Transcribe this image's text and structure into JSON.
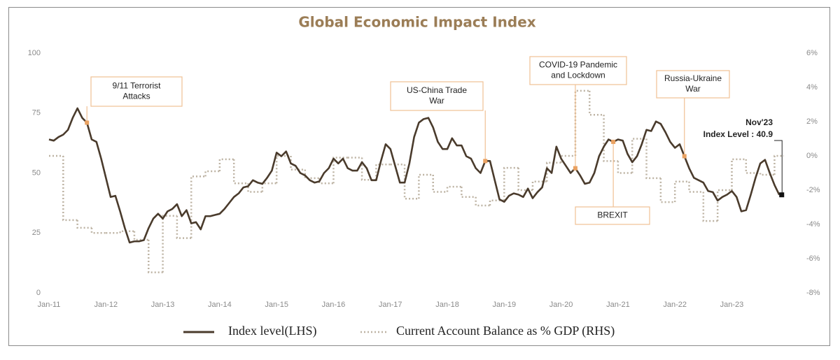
{
  "chart_data": {
    "type": "line",
    "title": "Global Economic Impact Index",
    "x": [
      "2011-01",
      "2011-02",
      "2011-03",
      "2011-04",
      "2011-05",
      "2011-06",
      "2011-07",
      "2011-08",
      "2011-09",
      "2011-10",
      "2011-11",
      "2011-12",
      "2012-01",
      "2012-02",
      "2012-03",
      "2012-04",
      "2012-05",
      "2012-06",
      "2012-07",
      "2012-08",
      "2012-09",
      "2012-10",
      "2012-11",
      "2012-12",
      "2013-01",
      "2013-02",
      "2013-03",
      "2013-04",
      "2013-05",
      "2013-06",
      "2013-07",
      "2013-08",
      "2013-09",
      "2013-10",
      "2013-11",
      "2013-12",
      "2014-01",
      "2014-02",
      "2014-03",
      "2014-04",
      "2014-05",
      "2014-06",
      "2014-07",
      "2014-08",
      "2014-09",
      "2014-10",
      "2014-11",
      "2014-12",
      "2015-01",
      "2015-02",
      "2015-03",
      "2015-04",
      "2015-05",
      "2015-06",
      "2015-07",
      "2015-08",
      "2015-09",
      "2015-10",
      "2015-11",
      "2015-12",
      "2016-01",
      "2016-02",
      "2016-03",
      "2016-04",
      "2016-05",
      "2016-06",
      "2016-07",
      "2016-08",
      "2016-09",
      "2016-10",
      "2016-11",
      "2016-12",
      "2017-01",
      "2017-02",
      "2017-03",
      "2017-04",
      "2017-05",
      "2017-06",
      "2017-07",
      "2017-08",
      "2017-09",
      "2017-10",
      "2017-11",
      "2017-12",
      "2018-01",
      "2018-02",
      "2018-03",
      "2018-04",
      "2018-05",
      "2018-06",
      "2018-07",
      "2018-08",
      "2018-09",
      "2018-10",
      "2018-11",
      "2018-12",
      "2019-01",
      "2019-02",
      "2019-03",
      "2019-04",
      "2019-05",
      "2019-06",
      "2019-07",
      "2019-08",
      "2019-09",
      "2019-10",
      "2019-11",
      "2019-12",
      "2020-01",
      "2020-02",
      "2020-03",
      "2020-04",
      "2020-05",
      "2020-06",
      "2020-07",
      "2020-08",
      "2020-09",
      "2020-10",
      "2020-11",
      "2020-12",
      "2021-01",
      "2021-02",
      "2021-03",
      "2021-04",
      "2021-05",
      "2021-06",
      "2021-07",
      "2021-08",
      "2021-09",
      "2021-10",
      "2021-11",
      "2021-12",
      "2022-01",
      "2022-02",
      "2022-03",
      "2022-04",
      "2022-05",
      "2022-06",
      "2022-07",
      "2022-08",
      "2022-09",
      "2022-10",
      "2022-11",
      "2022-12",
      "2023-01",
      "2023-02",
      "2023-03",
      "2023-04",
      "2023-05",
      "2023-06",
      "2023-07",
      "2023-08",
      "2023-09",
      "2023-10",
      "2023-11"
    ],
    "series": [
      {
        "name": "Index level(LHS)",
        "color": "#4a3b2c",
        "style": "solid",
        "values": [
          64,
          63.5,
          65,
          66,
          68,
          73,
          77,
          73,
          71,
          64,
          63,
          56,
          48,
          40,
          40.5,
          34,
          27,
          21,
          21.5,
          21.5,
          22,
          27,
          31,
          33,
          31,
          34,
          35,
          37,
          32,
          34.5,
          29,
          29.5,
          26.5,
          32,
          32,
          32.5,
          33,
          35,
          37.5,
          40,
          41.5,
          44,
          44.5,
          47,
          46,
          45.5,
          48,
          51,
          58.5,
          57,
          59,
          54,
          53,
          50,
          49,
          47,
          46,
          46.5,
          50,
          52,
          56,
          54,
          56,
          52,
          51,
          51,
          54.5,
          52,
          47,
          47,
          55,
          62,
          60,
          53,
          46,
          46,
          54,
          65,
          71,
          72.5,
          73,
          69,
          63,
          60,
          60,
          64.5,
          61.5,
          61.5,
          57,
          56,
          52,
          50,
          55,
          55,
          47,
          39,
          38,
          40.5,
          41.5,
          41,
          40,
          43.5,
          39.5,
          42,
          44,
          52,
          50,
          61,
          56,
          53,
          50,
          52,
          49,
          45.5,
          46,
          50,
          57,
          61,
          64,
          63,
          64,
          63.5,
          58,
          54.5,
          57,
          62,
          68,
          67.5,
          71.5,
          70.5,
          67,
          63,
          60.5,
          62,
          57,
          52,
          48,
          47,
          46,
          42.5,
          42,
          38.5,
          40,
          41,
          42.5,
          40,
          34,
          34.5,
          41,
          48,
          54,
          55.5,
          50,
          45,
          40.9
        ]
      },
      {
        "name": "Current Account Balance as % GDP (RHS)",
        "color": "#bdb3a3",
        "style": "dotted",
        "axis": "y2",
        "step": true,
        "x": [
          "2011-01",
          "2011-04",
          "2011-07",
          "2011-10",
          "2012-01",
          "2012-04",
          "2012-07",
          "2012-10",
          "2013-01",
          "2013-04",
          "2013-07",
          "2013-10",
          "2014-01",
          "2014-04",
          "2014-07",
          "2014-10",
          "2015-01",
          "2015-04",
          "2015-07",
          "2015-10",
          "2016-01",
          "2016-04",
          "2016-07",
          "2016-10",
          "2017-01",
          "2017-04",
          "2017-07",
          "2017-10",
          "2018-01",
          "2018-04",
          "2018-07",
          "2018-10",
          "2019-01",
          "2019-04",
          "2019-07",
          "2019-10",
          "2020-01",
          "2020-04",
          "2020-07",
          "2020-10",
          "2021-01",
          "2021-04",
          "2021-07",
          "2021-10",
          "2022-01",
          "2022-04",
          "2022-07",
          "2022-10",
          "2023-01",
          "2023-04",
          "2023-07",
          "2023-10"
        ],
        "values": [
          0,
          -3.75,
          -4.2,
          -4.5,
          -4.5,
          -4.4,
          -4.9,
          -6.8,
          -3.5,
          -4.8,
          -1.2,
          -0.9,
          -0.2,
          -1.6,
          -2.1,
          -1.6,
          0,
          -0.8,
          -1.3,
          -1.6,
          -0.1,
          -0.1,
          -1.4,
          -0.5,
          -0.5,
          -2.5,
          -1.1,
          -2.1,
          -1.8,
          -2.4,
          -2.9,
          -2.6,
          -0.7,
          -2,
          -1.5,
          -0.4,
          0,
          3.8,
          2.4,
          -0.3,
          -1,
          1,
          -1.3,
          -2.7,
          -1.5,
          -2.1,
          -3.8,
          -2,
          -0.2,
          -1,
          -1.1,
          0
        ]
      }
    ],
    "xlim": [
      "2011-01",
      "2023-12"
    ],
    "xticks": [
      {
        "value": "2011-01",
        "label": "Jan-11"
      },
      {
        "value": "2012-01",
        "label": "Jan-12"
      },
      {
        "value": "2013-01",
        "label": "Jan-13"
      },
      {
        "value": "2014-01",
        "label": "Jan-14"
      },
      {
        "value": "2015-01",
        "label": "Jan-15"
      },
      {
        "value": "2016-01",
        "label": "Jan-16"
      },
      {
        "value": "2017-01",
        "label": "Jan-17"
      },
      {
        "value": "2018-01",
        "label": "Jan-18"
      },
      {
        "value": "2019-01",
        "label": "Jan-19"
      },
      {
        "value": "2020-01",
        "label": "Jan-20"
      },
      {
        "value": "2021-01",
        "label": "Jan-21"
      },
      {
        "value": "2022-01",
        "label": "Jan-22"
      },
      {
        "value": "2023-01",
        "label": "Jan-23"
      }
    ],
    "ylim": [
      0,
      100
    ],
    "yticks": [
      0,
      25,
      50,
      75,
      100
    ],
    "y2lim": [
      -8,
      6
    ],
    "y2ticks": [
      {
        "value": -8,
        "label": "-8%"
      },
      {
        "value": -6,
        "label": "-6%"
      },
      {
        "value": -4,
        "label": "-4%"
      },
      {
        "value": -2,
        "label": "-2%"
      },
      {
        "value": 0,
        "label": "0%"
      },
      {
        "value": 2,
        "label": "2%"
      },
      {
        "value": 4,
        "label": "4%"
      },
      {
        "value": 6,
        "label": "6%"
      }
    ],
    "grid": false,
    "legend": "bottom",
    "annotations": [
      {
        "text": [
          "9/11 Terrorist",
          "Attacks"
        ],
        "x": "2011-09"
      },
      {
        "text": [
          "US-China Trade",
          "War"
        ],
        "x": "2018-09"
      },
      {
        "text": [
          "COVID-19 Pandemic",
          "and Lockdown"
        ],
        "x": "2020-04"
      },
      {
        "text": [
          "BREXIT"
        ],
        "x": "2020-12"
      },
      {
        "text": [
          "Russia-Ukraine",
          "War"
        ],
        "x": "2022-03"
      },
      {
        "text": [
          "Nov'23",
          "Index Level : 40.9"
        ],
        "x": "2023-11"
      }
    ]
  }
}
